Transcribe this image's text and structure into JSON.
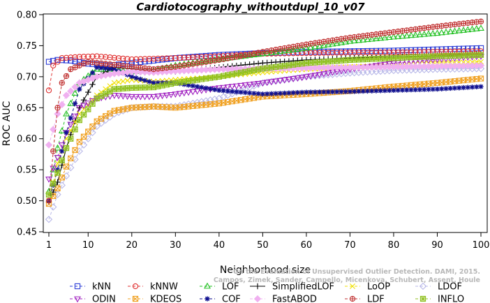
{
  "chart_data": {
    "type": "line",
    "title": "Cardiotocography_withoutdupl_10_v07",
    "xlabel": "Neighborhood size",
    "ylabel": "ROC AUC",
    "xlim": [
      1,
      100
    ],
    "ylim": [
      0.45,
      0.8
    ],
    "x_ticks": [
      1,
      10,
      20,
      30,
      40,
      50,
      60,
      70,
      80,
      90,
      100
    ],
    "y_ticks": [
      "0.45",
      "0.50",
      "0.55",
      "0.60",
      "0.65",
      "0.70",
      "0.75",
      "0.80"
    ],
    "grid": false,
    "legend_position": "bottom",
    "watermark": [
      "Campos, Zimek, Sander, Campello, Micenkova, Schubert, Assent, Houle",
      "On the Evaluation of Unsupervised Outlier Detection. DAMI, 2015."
    ],
    "series": [
      {
        "name": "kNN",
        "color": "#2a3bd6",
        "marker": "square",
        "line": "dashed",
        "points": [
          [
            1,
            0.724
          ],
          [
            3,
            0.727
          ],
          [
            6,
            0.726
          ],
          [
            10,
            0.721
          ],
          [
            15,
            0.718
          ],
          [
            20,
            0.722
          ],
          [
            30,
            0.73
          ],
          [
            40,
            0.735
          ],
          [
            50,
            0.738
          ],
          [
            60,
            0.74
          ],
          [
            70,
            0.741
          ],
          [
            80,
            0.742
          ],
          [
            90,
            0.744
          ],
          [
            100,
            0.746
          ]
        ]
      },
      {
        "name": "kNNW",
        "color": "#e03030",
        "marker": "circle",
        "line": "dashed",
        "points": [
          [
            1,
            0.678
          ],
          [
            2,
            0.718
          ],
          [
            4,
            0.73
          ],
          [
            8,
            0.732
          ],
          [
            12,
            0.733
          ],
          [
            20,
            0.728
          ],
          [
            30,
            0.73
          ],
          [
            40,
            0.733
          ],
          [
            50,
            0.737
          ],
          [
            60,
            0.738
          ],
          [
            70,
            0.739
          ],
          [
            80,
            0.739
          ],
          [
            90,
            0.74
          ],
          [
            100,
            0.741
          ]
        ]
      },
      {
        "name": "LOF",
        "color": "#22c022",
        "marker": "triangle-up",
        "line": "dashed",
        "points": [
          [
            1,
            0.515
          ],
          [
            3,
            0.585
          ],
          [
            5,
            0.64
          ],
          [
            8,
            0.69
          ],
          [
            12,
            0.712
          ],
          [
            16,
            0.712
          ],
          [
            20,
            0.708
          ],
          [
            25,
            0.71
          ],
          [
            30,
            0.718
          ],
          [
            40,
            0.728
          ],
          [
            50,
            0.737
          ],
          [
            60,
            0.746
          ],
          [
            70,
            0.757
          ],
          [
            80,
            0.764
          ],
          [
            90,
            0.77
          ],
          [
            100,
            0.778
          ]
        ]
      },
      {
        "name": "SimplifiedLOF",
        "color": "#000000",
        "marker": "plus",
        "line": "solid",
        "points": [
          [
            1,
            0.498
          ],
          [
            3,
            0.53
          ],
          [
            5,
            0.585
          ],
          [
            8,
            0.65
          ],
          [
            12,
            0.7
          ],
          [
            16,
            0.715
          ],
          [
            20,
            0.713
          ],
          [
            25,
            0.71
          ],
          [
            30,
            0.708
          ],
          [
            40,
            0.715
          ],
          [
            50,
            0.722
          ],
          [
            60,
            0.727
          ],
          [
            70,
            0.73
          ],
          [
            80,
            0.732
          ],
          [
            90,
            0.734
          ],
          [
            100,
            0.736
          ]
        ]
      },
      {
        "name": "LoOP",
        "color": "#f0e000",
        "marker": "cross",
        "line": "dashed",
        "points": [
          [
            1,
            0.5
          ],
          [
            3,
            0.56
          ],
          [
            5,
            0.6
          ],
          [
            8,
            0.64
          ],
          [
            12,
            0.67
          ],
          [
            16,
            0.69
          ],
          [
            20,
            0.695
          ],
          [
            25,
            0.692
          ],
          [
            30,
            0.695
          ],
          [
            40,
            0.7
          ],
          [
            50,
            0.707
          ],
          [
            60,
            0.712
          ],
          [
            70,
            0.716
          ],
          [
            80,
            0.719
          ],
          [
            90,
            0.722
          ],
          [
            100,
            0.724
          ]
        ]
      },
      {
        "name": "LDOF",
        "color": "#b8b8e8",
        "marker": "diamond",
        "line": "dashed",
        "points": [
          [
            1,
            0.47
          ],
          [
            3,
            0.51
          ],
          [
            5,
            0.54
          ],
          [
            8,
            0.58
          ],
          [
            12,
            0.62
          ],
          [
            16,
            0.64
          ],
          [
            20,
            0.65
          ],
          [
            25,
            0.652
          ],
          [
            30,
            0.652
          ],
          [
            40,
            0.665
          ],
          [
            50,
            0.69
          ],
          [
            60,
            0.7
          ],
          [
            70,
            0.706
          ],
          [
            80,
            0.71
          ],
          [
            90,
            0.712
          ],
          [
            100,
            0.713
          ]
        ]
      },
      {
        "name": "ODIN",
        "color": "#a020c0",
        "marker": "triangle-down",
        "line": "dashed",
        "points": [
          [
            1,
            0.535
          ],
          [
            3,
            0.57
          ],
          [
            5,
            0.61
          ],
          [
            8,
            0.65
          ],
          [
            12,
            0.665
          ],
          [
            16,
            0.67
          ],
          [
            20,
            0.668
          ],
          [
            25,
            0.668
          ],
          [
            30,
            0.672
          ],
          [
            40,
            0.682
          ],
          [
            50,
            0.69
          ],
          [
            60,
            0.7
          ],
          [
            70,
            0.712
          ],
          [
            80,
            0.722
          ],
          [
            90,
            0.728
          ],
          [
            100,
            0.733
          ]
        ]
      },
      {
        "name": "KDEOS",
        "color": "#f0a020",
        "marker": "boxed-x",
        "line": "dashed",
        "points": [
          [
            1,
            0.495
          ],
          [
            3,
            0.52
          ],
          [
            5,
            0.555
          ],
          [
            8,
            0.595
          ],
          [
            12,
            0.628
          ],
          [
            16,
            0.645
          ],
          [
            20,
            0.65
          ],
          [
            25,
            0.652
          ],
          [
            30,
            0.65
          ],
          [
            40,
            0.657
          ],
          [
            50,
            0.668
          ],
          [
            60,
            0.672
          ],
          [
            70,
            0.677
          ],
          [
            80,
            0.684
          ],
          [
            90,
            0.69
          ],
          [
            100,
            0.697
          ]
        ]
      },
      {
        "name": "COF",
        "color": "#101090",
        "marker": "asterisk",
        "line": "dashed",
        "points": [
          [
            1,
            0.5
          ],
          [
            3,
            0.55
          ],
          [
            5,
            0.61
          ],
          [
            8,
            0.68
          ],
          [
            12,
            0.715
          ],
          [
            16,
            0.712
          ],
          [
            20,
            0.7
          ],
          [
            25,
            0.69
          ],
          [
            30,
            0.69
          ],
          [
            40,
            0.678
          ],
          [
            50,
            0.672
          ],
          [
            60,
            0.675
          ],
          [
            70,
            0.676
          ],
          [
            80,
            0.678
          ],
          [
            90,
            0.68
          ],
          [
            100,
            0.684
          ]
        ]
      },
      {
        "name": "FastABOD",
        "color": "#f0b0f0",
        "marker": "diamond-filled",
        "line": "dashed",
        "points": [
          [
            1,
            0.59
          ],
          [
            3,
            0.64
          ],
          [
            5,
            0.67
          ],
          [
            8,
            0.69
          ],
          [
            12,
            0.7
          ],
          [
            16,
            0.705
          ],
          [
            20,
            0.708
          ],
          [
            25,
            0.707
          ],
          [
            30,
            0.709
          ],
          [
            40,
            0.712
          ],
          [
            50,
            0.713
          ],
          [
            60,
            0.714
          ],
          [
            70,
            0.715
          ],
          [
            80,
            0.716
          ],
          [
            90,
            0.717
          ],
          [
            100,
            0.718
          ]
        ]
      },
      {
        "name": "LDF",
        "color": "#c03030",
        "marker": "circle-plus",
        "line": "dashed",
        "points": [
          [
            1,
            0.5
          ],
          [
            2,
            0.58
          ],
          [
            3,
            0.65
          ],
          [
            4,
            0.69
          ],
          [
            6,
            0.712
          ],
          [
            10,
            0.724
          ],
          [
            15,
            0.72
          ],
          [
            20,
            0.716
          ],
          [
            25,
            0.712
          ],
          [
            30,
            0.716
          ],
          [
            40,
            0.727
          ],
          [
            50,
            0.74
          ],
          [
            60,
            0.752
          ],
          [
            70,
            0.763
          ],
          [
            80,
            0.772
          ],
          [
            90,
            0.781
          ],
          [
            100,
            0.789
          ]
        ]
      },
      {
        "name": "INFLO",
        "color": "#90c020",
        "marker": "boxed-star",
        "line": "dashed",
        "points": [
          [
            1,
            0.51
          ],
          [
            3,
            0.545
          ],
          [
            5,
            0.585
          ],
          [
            8,
            0.63
          ],
          [
            12,
            0.665
          ],
          [
            16,
            0.68
          ],
          [
            20,
            0.682
          ],
          [
            25,
            0.683
          ],
          [
            30,
            0.69
          ],
          [
            40,
            0.7
          ],
          [
            50,
            0.713
          ],
          [
            60,
            0.722
          ],
          [
            70,
            0.727
          ],
          [
            80,
            0.73
          ],
          [
            90,
            0.733
          ],
          [
            100,
            0.735
          ]
        ]
      }
    ]
  }
}
